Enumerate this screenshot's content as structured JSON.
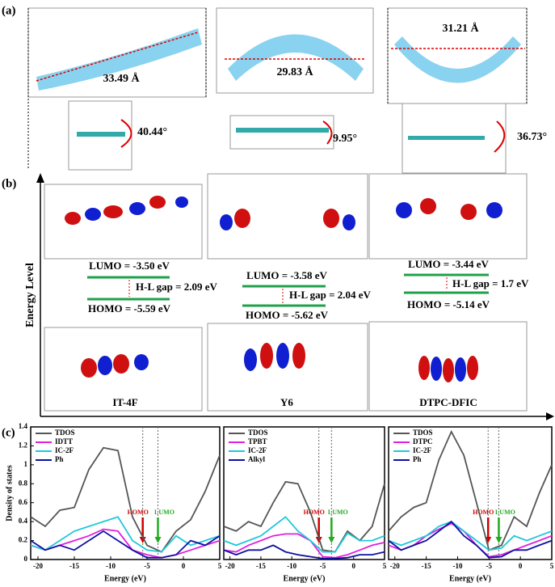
{
  "figure": {
    "panel_a": {
      "label": "(a)",
      "lengths": [
        "33.49 Å",
        "29.83 Å",
        "31.21 Å"
      ],
      "angles": [
        "40.44°",
        "9.95°",
        "36.73°"
      ]
    },
    "panel_b": {
      "label": "(b)",
      "axis_label": "Energy Level",
      "molecules": [
        {
          "name": "IT-4F",
          "lumo": "LUMO = -3.50 eV",
          "gap": "H-L gap = 2.09 eV",
          "homo": "HOMO = -5.59 eV"
        },
        {
          "name": "Y6",
          "lumo": "LUMO = -3.58 eV",
          "gap": "H-L gap = 2.04 eV",
          "homo": "HOMO = -5.62 eV"
        },
        {
          "name": "DTPC-DFIC",
          "lumo": "LUMO = -3.44 eV",
          "gap": "H-L gap = 1.7 eV",
          "homo": "HOMO = -5.14 eV"
        }
      ]
    },
    "panel_c": {
      "label": "(c)"
    }
  },
  "chart_data": [
    {
      "type": "line",
      "x_label": "Energy (eV)",
      "y_label": "Density of states",
      "xlim": [
        -21,
        5
      ],
      "ylim": [
        0,
        1.4
      ],
      "xticks": [
        -20,
        -15,
        -10,
        -5,
        0,
        5
      ],
      "yticks": [
        0,
        0.2,
        0.4,
        0.6,
        0.8,
        1,
        1.2,
        1.4
      ],
      "x": [
        -21,
        -19,
        -17,
        -15,
        -13,
        -11,
        -9,
        -7,
        -5,
        -3,
        -1,
        1,
        3,
        5
      ],
      "series": [
        {
          "name": "TDOS",
          "color": "#555555",
          "values": [
            0.45,
            0.35,
            0.52,
            0.55,
            0.95,
            1.18,
            1.15,
            0.45,
            0.15,
            0.08,
            0.3,
            0.42,
            0.72,
            1.1
          ]
        },
        {
          "name": "IDTT",
          "color": "#e020e0",
          "values": [
            0.15,
            0.1,
            0.15,
            0.2,
            0.25,
            0.32,
            0.3,
            0.1,
            0.05,
            0.02,
            0.05,
            0.1,
            0.15,
            0.2
          ]
        },
        {
          "name": "IC-2F",
          "color": "#20c8d8",
          "values": [
            0.15,
            0.1,
            0.2,
            0.3,
            0.35,
            0.4,
            0.45,
            0.2,
            0.1,
            0.08,
            0.25,
            0.15,
            0.2,
            0.25
          ]
        },
        {
          "name": "Ph",
          "color": "#1010a0",
          "values": [
            0.2,
            0.1,
            0.15,
            0.1,
            0.2,
            0.3,
            0.2,
            0.1,
            0.02,
            0.02,
            0.05,
            0.2,
            0.15,
            0.25
          ]
        }
      ],
      "markers": [
        {
          "label": "HOMO",
          "x": -5.59,
          "color": "#d00000"
        },
        {
          "label": "LUMO",
          "x": -3.5,
          "color": "#22aa22"
        }
      ]
    },
    {
      "type": "line",
      "x_label": "Energy (eV)",
      "xlim": [
        -21,
        5
      ],
      "ylim": [
        0,
        1.4
      ],
      "xticks": [
        -20,
        -15,
        -10,
        -5,
        0,
        5
      ],
      "x": [
        -21,
        -19,
        -17,
        -15,
        -13,
        -11,
        -9,
        -7,
        -5,
        -3,
        -1,
        1,
        3,
        5
      ],
      "series": [
        {
          "name": "TDOS",
          "color": "#555555",
          "values": [
            0.35,
            0.3,
            0.4,
            0.35,
            0.6,
            0.82,
            0.8,
            0.5,
            0.1,
            0.08,
            0.3,
            0.2,
            0.35,
            0.8
          ]
        },
        {
          "name": "TPBT",
          "color": "#e020e0",
          "values": [
            0.1,
            0.08,
            0.15,
            0.2,
            0.25,
            0.27,
            0.27,
            0.2,
            0.03,
            0.02,
            0.05,
            0.1,
            0.15,
            0.18
          ]
        },
        {
          "name": "IC-2F",
          "color": "#20c8d8",
          "values": [
            0.2,
            0.15,
            0.2,
            0.25,
            0.35,
            0.45,
            0.3,
            0.2,
            0.08,
            0.08,
            0.28,
            0.2,
            0.2,
            0.25
          ]
        },
        {
          "name": "Alkyl",
          "color": "#1010a0",
          "values": [
            0.1,
            0.05,
            0.1,
            0.1,
            0.15,
            0.08,
            0.05,
            0.03,
            0.01,
            0.01,
            0.02,
            0.05,
            0.05,
            0.08
          ]
        }
      ],
      "markers": [
        {
          "label": "HOMO",
          "x": -5.62,
          "color": "#d00000"
        },
        {
          "label": "LUMO",
          "x": -3.58,
          "color": "#22aa22"
        }
      ]
    },
    {
      "type": "line",
      "x_label": "Energy (eV)",
      "xlim": [
        -21,
        5
      ],
      "ylim": [
        0,
        1.4
      ],
      "xticks": [
        -20,
        -15,
        -10,
        -5,
        0,
        5
      ],
      "x": [
        -21,
        -19,
        -17,
        -15,
        -13,
        -11,
        -9,
        -7,
        -5,
        -3,
        -1,
        1,
        3,
        5
      ],
      "series": [
        {
          "name": "TDOS",
          "color": "#555555",
          "values": [
            0.3,
            0.45,
            0.55,
            0.6,
            1.05,
            1.35,
            1.1,
            0.6,
            0.1,
            0.15,
            0.45,
            0.35,
            0.7,
            1.0
          ]
        },
        {
          "name": "DTPC",
          "color": "#e020e0",
          "values": [
            0.15,
            0.1,
            0.15,
            0.25,
            0.32,
            0.38,
            0.3,
            0.15,
            0.03,
            0.05,
            0.1,
            0.15,
            0.2,
            0.25
          ]
        },
        {
          "name": "IC-2F",
          "color": "#20c8d8",
          "values": [
            0.2,
            0.15,
            0.2,
            0.25,
            0.35,
            0.4,
            0.3,
            0.2,
            0.1,
            0.12,
            0.25,
            0.2,
            0.25,
            0.3
          ]
        },
        {
          "name": "Ph",
          "color": "#1010a0",
          "values": [
            0.2,
            0.1,
            0.15,
            0.2,
            0.3,
            0.4,
            0.25,
            0.15,
            0.02,
            0.03,
            0.1,
            0.1,
            0.15,
            0.2
          ]
        }
      ],
      "markers": [
        {
          "label": "HOMO",
          "x": -5.14,
          "color": "#d00000"
        },
        {
          "label": "LUMO",
          "x": -3.44,
          "color": "#22aa22"
        }
      ]
    }
  ]
}
